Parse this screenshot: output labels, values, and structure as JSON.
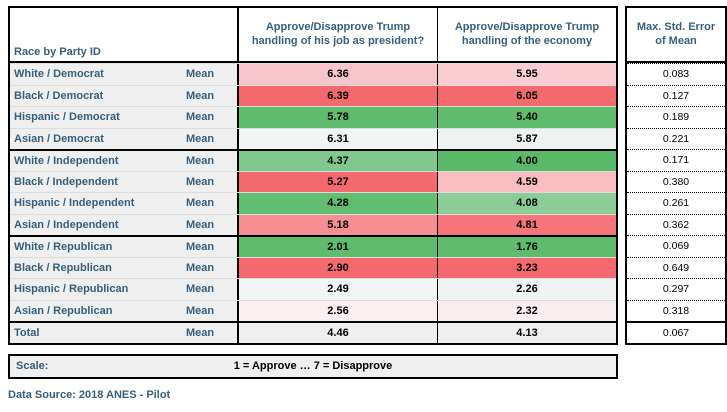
{
  "header": {
    "race_label": "Race by Party ID",
    "job_label": "Approve/Disapprove Trump handling of his job as president?",
    "econ_label": "Approve/Disapprove Trump handling of the economy",
    "se_label": "Max. Std. Error of Mean"
  },
  "stat_label": "Mean",
  "rows": [
    {
      "label": "White / Democrat",
      "job": "6.36",
      "job_bg": "#f7c4c9",
      "econ": "5.95",
      "econ_bg": "#f9cdd1",
      "se": "0.083"
    },
    {
      "label": "Black / Democrat",
      "job": "6.39",
      "job_bg": "#f4696e",
      "econ": "6.05",
      "econ_bg": "#f4696e",
      "se": "0.127"
    },
    {
      "label": "Hispanic / Democrat",
      "job": "5.78",
      "job_bg": "#5ebc6c",
      "econ": "5.40",
      "econ_bg": "#5ebc6c",
      "se": "0.189"
    },
    {
      "label": "Asian / Democrat",
      "job": "6.31",
      "job_bg": "#f1f6f5",
      "econ": "5.87",
      "econ_bg": "#eef3f1",
      "se": "0.221"
    },
    {
      "label": "White / Independent",
      "job": "4.37",
      "job_bg": "#80c98c",
      "econ": "4.00",
      "econ_bg": "#5bba69",
      "se": "0.171"
    },
    {
      "label": "Black / Independent",
      "job": "5.27",
      "job_bg": "#f4696e",
      "econ": "4.59",
      "econ_bg": "#f9bcc1",
      "se": "0.380"
    },
    {
      "label": "Hispanic / Independent",
      "job": "4.28",
      "job_bg": "#61bd6f",
      "econ": "4.08",
      "econ_bg": "#8ccd97",
      "se": "0.261"
    },
    {
      "label": "Asian / Independent",
      "job": "5.18",
      "job_bg": "#f68e92",
      "econ": "4.81",
      "econ_bg": "#f5757a",
      "se": "0.362"
    },
    {
      "label": "White / Republican",
      "job": "2.01",
      "job_bg": "#5ebc6c",
      "econ": "1.76",
      "econ_bg": "#5ebc6c",
      "se": "0.069"
    },
    {
      "label": "Black / Republican",
      "job": "2.90",
      "job_bg": "#f4696e",
      "econ": "3.23",
      "econ_bg": "#f4696e",
      "se": "0.649"
    },
    {
      "label": "Hispanic / Republican",
      "job": "2.49",
      "job_bg": "#f1f5f3",
      "econ": "2.26",
      "econ_bg": "#eff3f1",
      "se": "0.297"
    },
    {
      "label": "Asian / Republican",
      "job": "2.56",
      "job_bg": "#fbeff0",
      "econ": "2.32",
      "econ_bg": "#faeff0",
      "se": "0.318"
    },
    {
      "label": "Total",
      "job": "4.46",
      "job_bg": "#efefef",
      "econ": "4.13",
      "econ_bg": "#efefef",
      "se": "0.067"
    }
  ],
  "scale": {
    "label": "Scale:",
    "text": "1 = Approve … 7 = Disapprove"
  },
  "source": "Data Source: 2018 ANES - Pilot",
  "colors": {
    "accent_text": "#355f7e",
    "label_bg": "#efefef",
    "strong_red": "#f4696e",
    "strong_green": "#5ebc6c"
  },
  "chart_data": {
    "type": "table",
    "title": "",
    "statistic": "Mean",
    "categories": [
      "White / Democrat",
      "Black / Democrat",
      "Hispanic / Democrat",
      "Asian / Democrat",
      "White / Independent",
      "Black / Independent",
      "Hispanic / Independent",
      "Asian / Independent",
      "White / Republican",
      "Black / Republican",
      "Hispanic / Republican",
      "Asian / Republican",
      "Total"
    ],
    "series": [
      {
        "name": "Approve/Disapprove Trump handling of his job as president?",
        "values": [
          6.36,
          6.39,
          5.78,
          6.31,
          4.37,
          5.27,
          4.28,
          5.18,
          2.01,
          2.9,
          2.49,
          2.56,
          4.46
        ]
      },
      {
        "name": "Approve/Disapprove Trump handling of the economy",
        "values": [
          5.95,
          6.05,
          5.4,
          5.87,
          4.0,
          4.59,
          4.08,
          4.81,
          1.76,
          3.23,
          2.26,
          2.32,
          4.13
        ]
      },
      {
        "name": "Max. Std. Error of Mean",
        "values": [
          0.083,
          0.127,
          0.189,
          0.221,
          0.171,
          0.38,
          0.261,
          0.362,
          0.069,
          0.649,
          0.297,
          0.318,
          0.067
        ]
      }
    ],
    "scale_note": "1 = Approve … 7 = Disapprove",
    "source": "Data Source: 2018 ANES - Pilot",
    "legend_position": "none",
    "grid": false
  }
}
